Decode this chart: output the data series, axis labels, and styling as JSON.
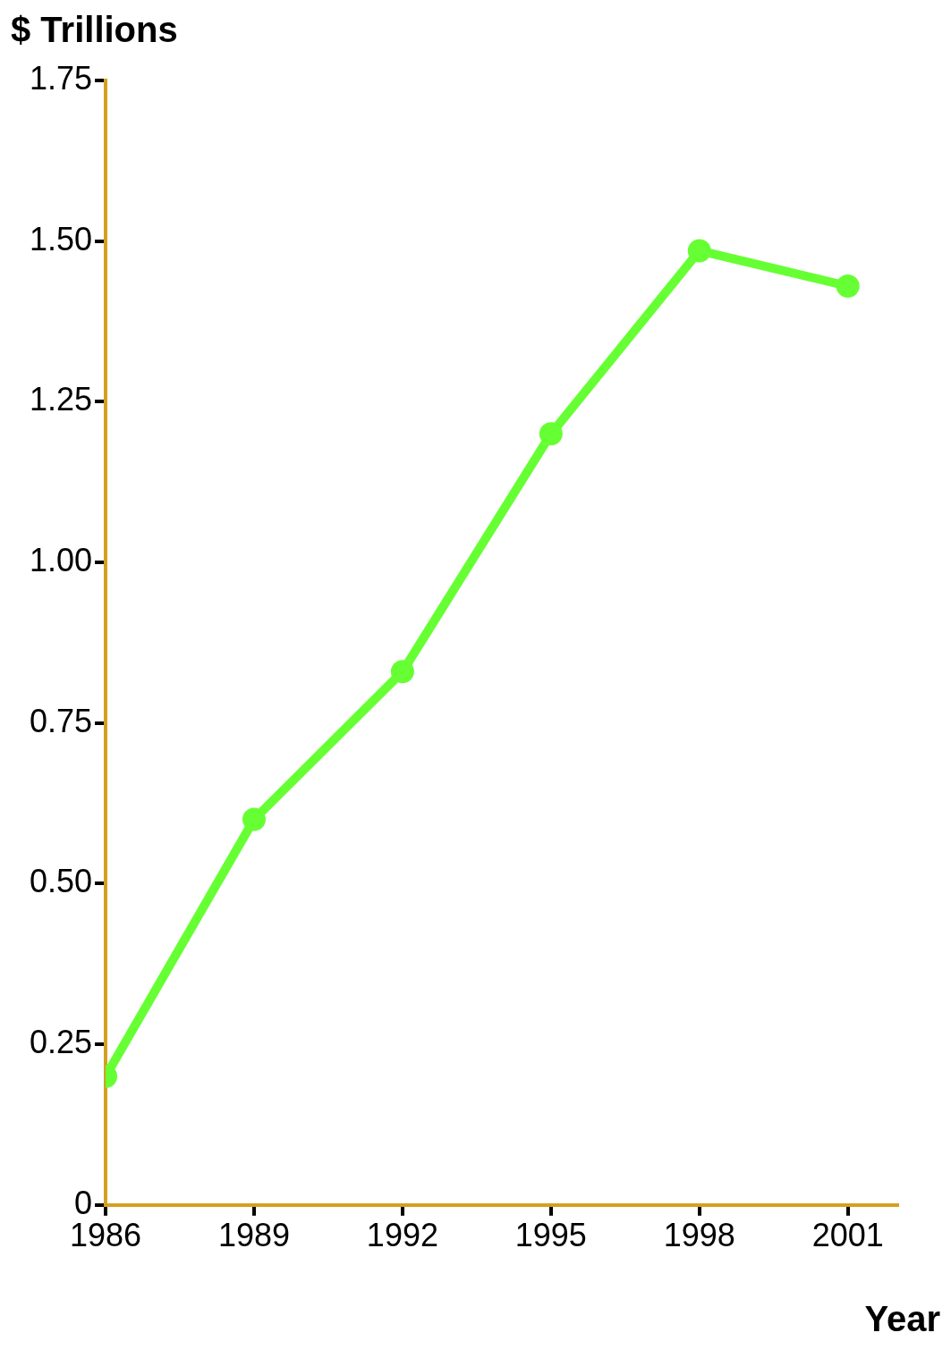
{
  "chart_data": {
    "type": "line",
    "xlabel": "Year",
    "ylabel": "$ Trillions",
    "x": [
      1986,
      1989,
      1992,
      1995,
      1998,
      2001
    ],
    "series": [
      {
        "color": "#66ff33",
        "values": [
          0.2,
          0.6,
          0.83,
          1.2,
          1.485,
          1.43
        ]
      }
    ],
    "xlim": [
      1986,
      2002
    ],
    "xticks": [
      1986,
      1989,
      1992,
      1995,
      1998,
      2001
    ],
    "ylim": [
      0,
      1.75
    ],
    "yticks": [
      0,
      0.25,
      {
        "value": 0.5,
        "label": "0.50"
      },
      0.75,
      {
        "value": 1,
        "label": "1.00"
      },
      1.25,
      {
        "value": 1.5,
        "label": "1.50"
      },
      1.75
    ],
    "grid": false,
    "legend": false,
    "marker": "circle",
    "line_style": "solid"
  }
}
